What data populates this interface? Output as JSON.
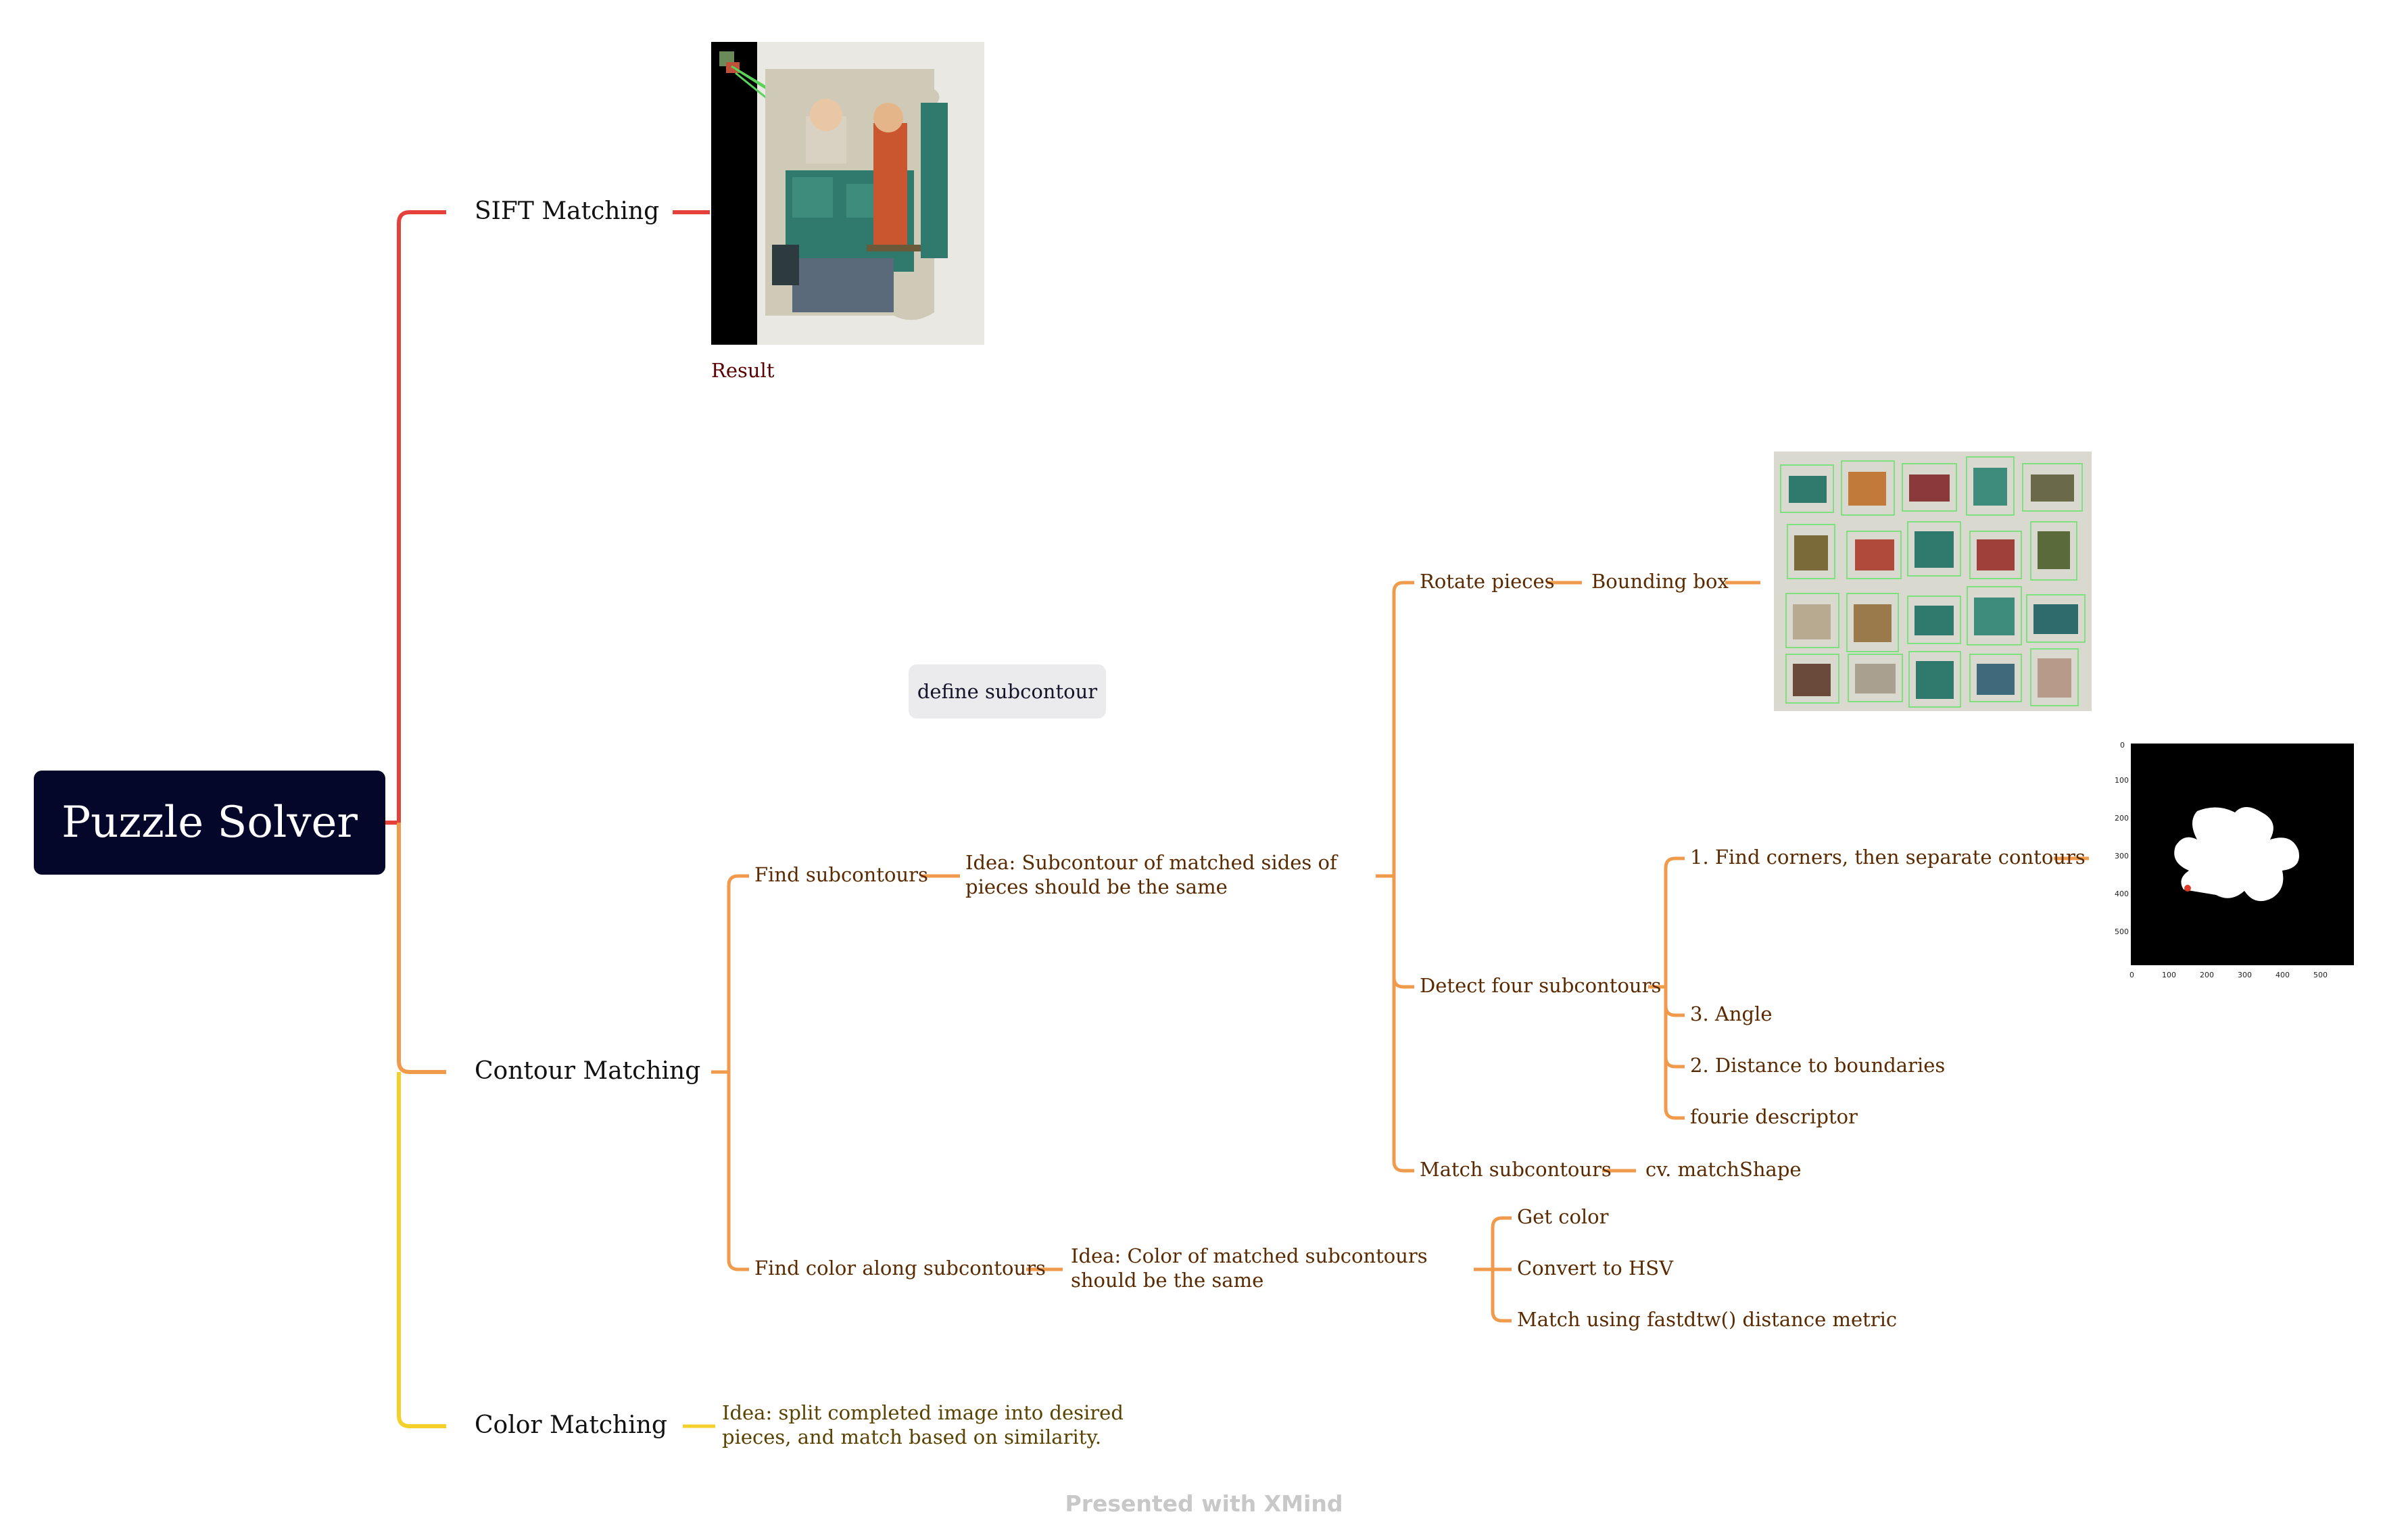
{
  "root": {
    "label": "Puzzle Solver"
  },
  "branches": {
    "sift": {
      "label": "SIFT Matching",
      "image_caption": "Result"
    },
    "contour": {
      "label": "Contour Matching",
      "find_subcontours": {
        "label": "Find subcontours",
        "idea": "Idea: Subcontour of matched sides of pieces should be the same",
        "rotate": {
          "label": "Rotate pieces",
          "child": "Bounding box"
        },
        "detect": {
          "label": "Detect four subcontours",
          "items": [
            "1. Find corners, then separate contours",
            "3. Angle",
            "2. Distance to boundaries",
            "fourie descriptor"
          ]
        },
        "match": {
          "label": "Match subcontours",
          "child": "cv. matchShape"
        }
      },
      "find_color": {
        "label": "Find color along subcontours",
        "idea": "Idea: Color of matched subcontours should be the same",
        "items": [
          "Get color",
          "Convert to HSV",
          "Match using fastdtw() distance metric"
        ]
      }
    },
    "color": {
      "label": "Color Matching",
      "idea": "Idea: split completed image into desired pieces, and match based on similarity."
    }
  },
  "floating_topic": "define subcontour",
  "plot_ticks": {
    "y": [
      "0",
      "100",
      "200",
      "300",
      "400",
      "500"
    ],
    "x": [
      "0",
      "100",
      "200",
      "300",
      "400",
      "500"
    ]
  },
  "footer": "Presented with XMind",
  "colors": {
    "red": "#e3413a",
    "orange": "#f09a4c",
    "yellow": "#f5cf2a",
    "root_bg": "#05072a",
    "topic_bg": "#ebebee"
  }
}
